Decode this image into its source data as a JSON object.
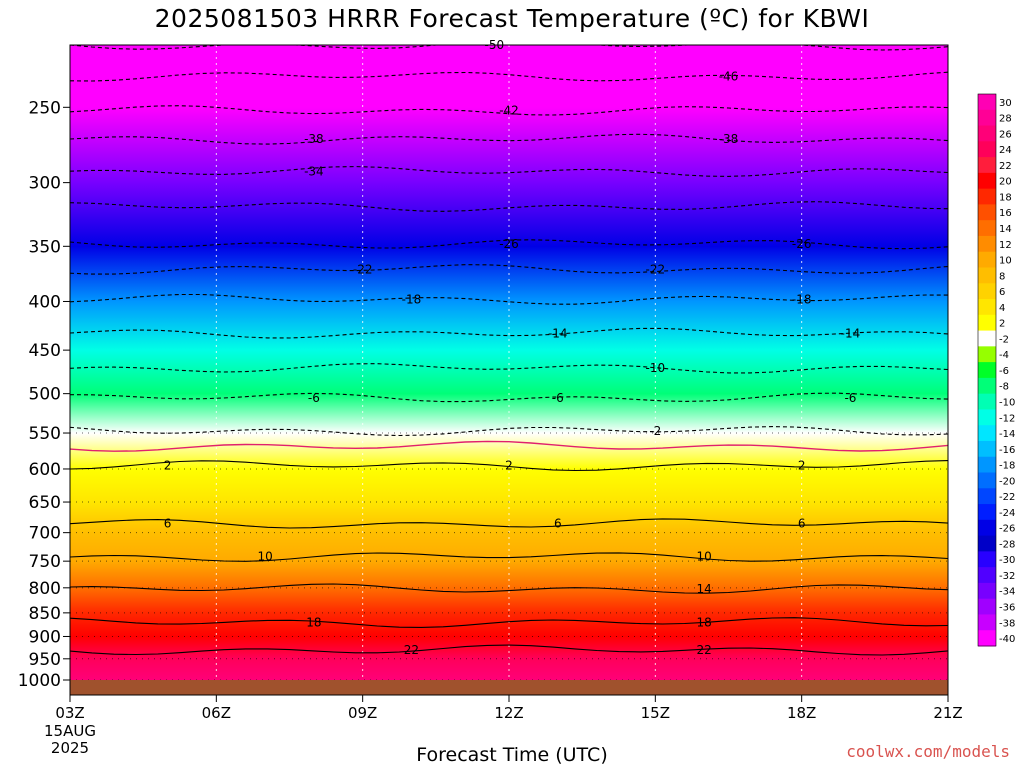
{
  "title": "2025081503 HRRR Forecast Temperature (ºC) for KBWI",
  "credit": "coolwx.com/models",
  "chart_data": {
    "type": "heatmap",
    "title": "2025081503 HRRR Forecast Temperature (ºC) for KBWI",
    "xlabel": "Forecast Time (UTC)",
    "ylabel": "",
    "x_ticks": [
      "03Z",
      "06Z",
      "09Z",
      "12Z",
      "15Z",
      "18Z",
      "21Z"
    ],
    "x_hours": [
      3,
      6,
      9,
      12,
      15,
      18,
      21
    ],
    "x_date_label": [
      "15AUG",
      "2025"
    ],
    "y_scale": "log",
    "ylim": [
      1000,
      200
    ],
    "y_ticks": [
      250,
      300,
      350,
      400,
      450,
      500,
      550,
      600,
      650,
      700,
      750,
      800,
      850,
      900,
      950,
      1000
    ],
    "colorbar_ticks": [
      30,
      28,
      26,
      24,
      22,
      20,
      18,
      16,
      14,
      12,
      10,
      8,
      6,
      4,
      2,
      -2,
      -4,
      -6,
      -8,
      -10,
      -12,
      -14,
      -16,
      -18,
      -20,
      -22,
      -24,
      -26,
      -28,
      -30,
      -32,
      -34,
      -36,
      -38,
      -40
    ],
    "colorbar_colors": [
      "#ff00b4",
      "#ff0096",
      "#ff0078",
      "#ff005a",
      "#ff1e3c",
      "#ff0000",
      "#ff2800",
      "#ff5000",
      "#ff6e00",
      "#ff8c00",
      "#ffaa00",
      "#ffbe00",
      "#ffd200",
      "#ffe600",
      "#ffff00",
      "#ffffff",
      "#96ff00",
      "#00ff28",
      "#00ff78",
      "#00ffb4",
      "#00ffe6",
      "#00e6ff",
      "#00bfff",
      "#0096ff",
      "#006eff",
      "#0046ff",
      "#001eff",
      "#0000e6",
      "#0000c8",
      "#2800ff",
      "#5000ff",
      "#7800ff",
      "#a000ff",
      "#c800ff",
      "#ff00ff"
    ],
    "profile": [
      {
        "p": 200,
        "t": -56
      },
      {
        "p": 250,
        "t": -44
      },
      {
        "p": 300,
        "t": -34
      },
      {
        "p": 350,
        "t": -26
      },
      {
        "p": 400,
        "t": -18.5
      },
      {
        "p": 450,
        "t": -13
      },
      {
        "p": 500,
        "t": -7.5
      },
      {
        "p": 550,
        "t": -2
      },
      {
        "p": 600,
        "t": 2
      },
      {
        "p": 650,
        "t": 4.5
      },
      {
        "p": 700,
        "t": 7
      },
      {
        "p": 750,
        "t": 10.5
      },
      {
        "p": 800,
        "t": 13.5
      },
      {
        "p": 850,
        "t": 17
      },
      {
        "p": 900,
        "t": 19.5
      },
      {
        "p": 950,
        "t": 23
      },
      {
        "p": 1000,
        "t": 25
      }
    ],
    "contours": [
      {
        "t": -50,
        "p": 215,
        "style": "dashed",
        "labels": [
          {
            "hour": 11.7,
            "text": "-50"
          }
        ]
      },
      {
        "t": -46,
        "p": 232,
        "style": "dashed",
        "labels": [
          {
            "hour": 16.5,
            "text": "-46"
          }
        ]
      },
      {
        "t": -42,
        "p": 252,
        "style": "dashed",
        "labels": [
          {
            "hour": 12,
            "text": "-42"
          }
        ]
      },
      {
        "t": -38,
        "p": 270,
        "style": "dashed",
        "labels": [
          {
            "hour": 8,
            "text": "-38"
          },
          {
            "hour": 16.5,
            "text": "-38"
          }
        ]
      },
      {
        "t": -34,
        "p": 292,
        "style": "dashed",
        "labels": [
          {
            "hour": 8,
            "text": "-34"
          }
        ]
      },
      {
        "t": -30,
        "p": 318,
        "style": "dashed",
        "labels": []
      },
      {
        "t": -26,
        "p": 348,
        "style": "dashed",
        "labels": [
          {
            "hour": 12,
            "text": "-26"
          },
          {
            "hour": 18,
            "text": "-26"
          }
        ]
      },
      {
        "t": -22,
        "p": 370,
        "style": "dashed",
        "labels": [
          {
            "hour": 9,
            "text": "-22"
          },
          {
            "hour": 15,
            "text": "-22"
          }
        ]
      },
      {
        "t": -18,
        "p": 398,
        "style": "dashed",
        "labels": [
          {
            "hour": 10,
            "text": "-18"
          },
          {
            "hour": 18,
            "text": "-18"
          }
        ]
      },
      {
        "t": -14,
        "p": 432,
        "style": "dashed",
        "labels": [
          {
            "hour": 13,
            "text": "-14"
          },
          {
            "hour": 19,
            "text": "-14"
          }
        ]
      },
      {
        "t": -10,
        "p": 470,
        "style": "dashed",
        "labels": [
          {
            "hour": 15,
            "text": "-10"
          }
        ]
      },
      {
        "t": -6,
        "p": 505,
        "style": "dashed",
        "labels": [
          {
            "hour": 8,
            "text": "-6"
          },
          {
            "hour": 13,
            "text": "-6"
          },
          {
            "hour": 19,
            "text": "-6"
          }
        ]
      },
      {
        "t": -2,
        "p": 547,
        "style": "dashed",
        "labels": [
          {
            "hour": 15,
            "text": "-2"
          }
        ]
      },
      {
        "t": 0,
        "p": 568,
        "style": "freezing",
        "labels": []
      },
      {
        "t": 2,
        "p": 595,
        "style": "solid",
        "labels": [
          {
            "hour": 5,
            "text": "2"
          },
          {
            "hour": 12,
            "text": "2"
          },
          {
            "hour": 18,
            "text": "2"
          }
        ]
      },
      {
        "t": 6,
        "p": 685,
        "style": "solid",
        "labels": [
          {
            "hour": 5,
            "text": "6"
          },
          {
            "hour": 13,
            "text": "6"
          },
          {
            "hour": 18,
            "text": "6"
          }
        ]
      },
      {
        "t": 10,
        "p": 742,
        "style": "solid",
        "labels": [
          {
            "hour": 7,
            "text": "10"
          },
          {
            "hour": 16,
            "text": "10"
          }
        ]
      },
      {
        "t": 14,
        "p": 802,
        "style": "solid",
        "labels": [
          {
            "hour": 16,
            "text": "14"
          }
        ]
      },
      {
        "t": 18,
        "p": 870,
        "style": "solid",
        "labels": [
          {
            "hour": 8,
            "text": "18"
          },
          {
            "hour": 16,
            "text": "18"
          }
        ]
      },
      {
        "t": 22,
        "p": 930,
        "style": "solid",
        "labels": [
          {
            "hour": 10,
            "text": "22"
          },
          {
            "hour": 16,
            "text": "22"
          }
        ]
      }
    ],
    "grid": true
  }
}
